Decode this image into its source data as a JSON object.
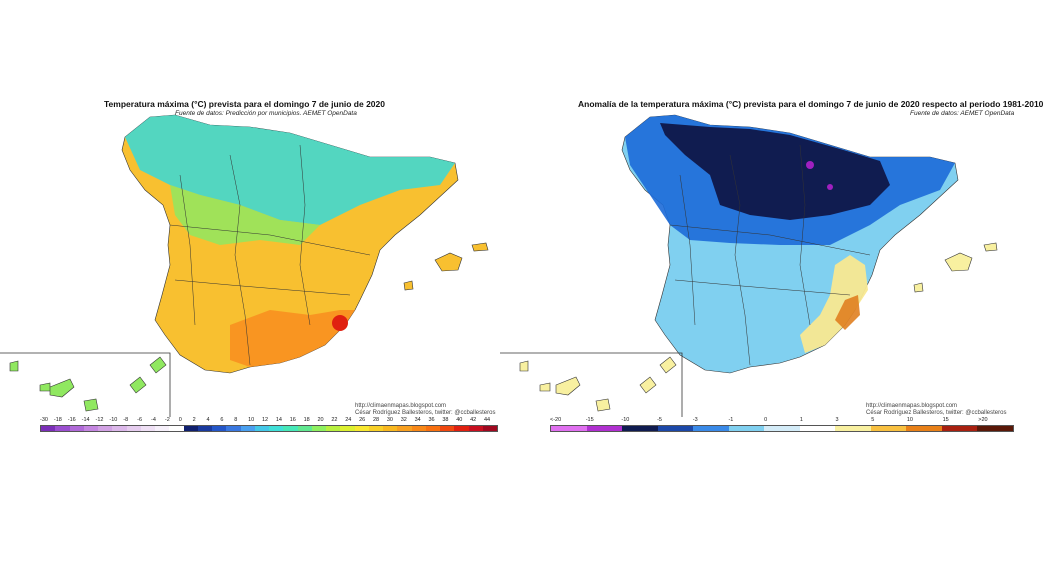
{
  "left": {
    "title": "Temperatura máxima (°C) prevista para el domingo 7 de junio de 2020",
    "source": "Fuente de datos: Predicción por municipios. AEMET OpenData",
    "credit_line1": "http://climaenmapas.blogspot.com",
    "credit_line2": "César Rodríguez Ballesteros, twitter: @ccballesteros",
    "legend_labels": [
      "-30",
      "-18",
      "-16",
      "-14",
      "-12",
      "-10",
      "-8",
      "-6",
      "-4",
      "-2",
      "0",
      "2",
      "4",
      "6",
      "8",
      "10",
      "12",
      "14",
      "16",
      "18",
      "20",
      "22",
      "24",
      "26",
      "28",
      "30",
      "32",
      "34",
      "36",
      "38",
      "40",
      "42",
      "44"
    ],
    "legend_colors": [
      "#7b2fb8",
      "#9b4fd0",
      "#b06ad8",
      "#c486e0",
      "#d2a2e4",
      "#dcb8ea",
      "#e6cdef",
      "#efe0f5",
      "#f6f0fa",
      "#ffffff",
      "#10206e",
      "#1a3a9e",
      "#2456c8",
      "#3a78e0",
      "#4aa0f0",
      "#44c8e8",
      "#40e0d8",
      "#46e8b8",
      "#60e890",
      "#8ef060",
      "#b8f040",
      "#dcf030",
      "#f8e830",
      "#f8d028",
      "#f8b820",
      "#f8a020",
      "#f88818",
      "#f87010",
      "#f04810",
      "#e02010",
      "#c81020",
      "#a00820"
    ]
  },
  "right": {
    "title": "Anomalía de la temperatura máxima (°C) prevista para el domingo 7 de junio de 2020 respecto al periodo 1981-2010",
    "source": "Fuente de datos: AEMET OpenData",
    "credit_line1": "http://climaenmapas.blogspot.com",
    "credit_line2": "César Rodríguez Ballesteros, twitter: @ccballesteros",
    "legend_labels": [
      "<-20",
      "-15",
      "-10",
      "-5",
      "-3",
      "-1",
      "0",
      "1",
      "3",
      "5",
      "10",
      "15",
      ">20"
    ],
    "legend_colors": [
      "#e070f0",
      "#b030d0",
      "#101c50",
      "#1c48a8",
      "#3a8ae8",
      "#80d0f0",
      "#d4ecf8",
      "#ffffff",
      "#f8f0a0",
      "#f8c040",
      "#e88018",
      "#a82010",
      "#5a1808"
    ]
  },
  "colors": {
    "left_north": "#40d8d0",
    "left_mid": "#90e860",
    "left_south": "#f8c030",
    "left_hot": "#f89020",
    "left_spot": "#e02010",
    "right_north": "#101c50",
    "right_mid": "#1c6ad8",
    "right_south": "#80d0f0",
    "right_warm": "#f8e890",
    "right_hot": "#e08020",
    "right_spot": "#a020c0"
  }
}
